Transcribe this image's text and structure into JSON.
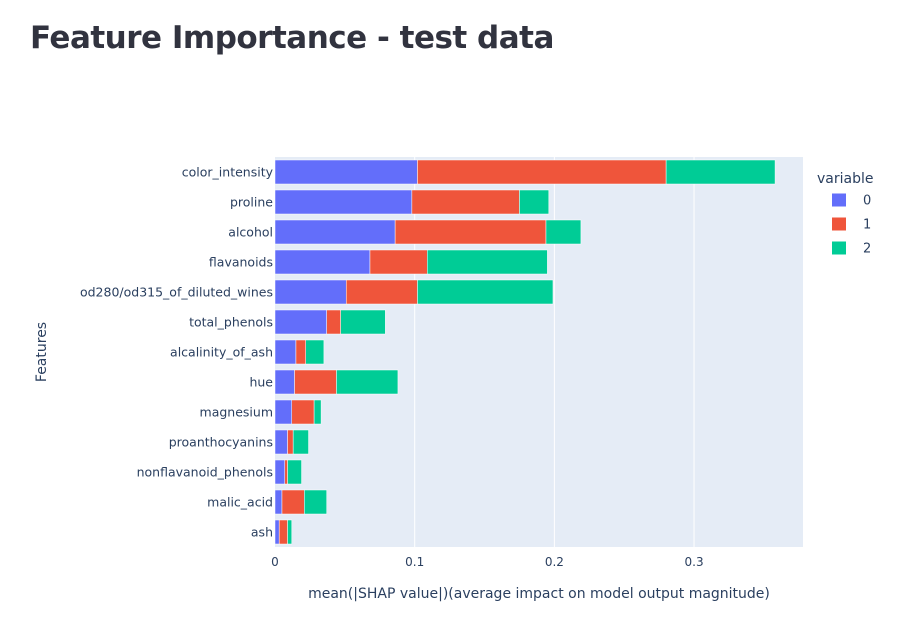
{
  "page": {
    "title": "Feature Importance - test data"
  },
  "chart_data": {
    "type": "bar",
    "orientation": "horizontal",
    "stacked": true,
    "categories": [
      "color_intensity",
      "proline",
      "alcohol",
      "flavanoids",
      "od280/od315_of_diluted_wines",
      "total_phenols",
      "alcalinity_of_ash",
      "hue",
      "magnesium",
      "proanthocyanins",
      "nonflavanoid_phenols",
      "malic_acid",
      "ash"
    ],
    "series": [
      {
        "name": "0",
        "color": "#636efa",
        "values": [
          0.102,
          0.098,
          0.086,
          0.068,
          0.051,
          0.037,
          0.015,
          0.014,
          0.012,
          0.009,
          0.007,
          0.005,
          0.003
        ]
      },
      {
        "name": "1",
        "color": "#ef553b",
        "values": [
          0.178,
          0.077,
          0.108,
          0.041,
          0.051,
          0.01,
          0.007,
          0.03,
          0.016,
          0.004,
          0.002,
          0.016,
          0.006
        ]
      },
      {
        "name": "2",
        "color": "#00cc96",
        "values": [
          0.078,
          0.021,
          0.025,
          0.086,
          0.097,
          0.032,
          0.013,
          0.044,
          0.005,
          0.011,
          0.01,
          0.016,
          0.003
        ]
      }
    ],
    "xlabel": "mean(|SHAP value|)(average impact on model output magnitude)",
    "ylabel": "Features",
    "xlim": [
      0,
      0.378
    ],
    "xticks": [
      0,
      0.1,
      0.2,
      0.3
    ],
    "xtick_labels": [
      "0",
      "0.1",
      "0.2",
      "0.3"
    ],
    "legend_title": "variable",
    "legend_position": "right",
    "grid": true,
    "plot_background": "#e5ecf6"
  }
}
